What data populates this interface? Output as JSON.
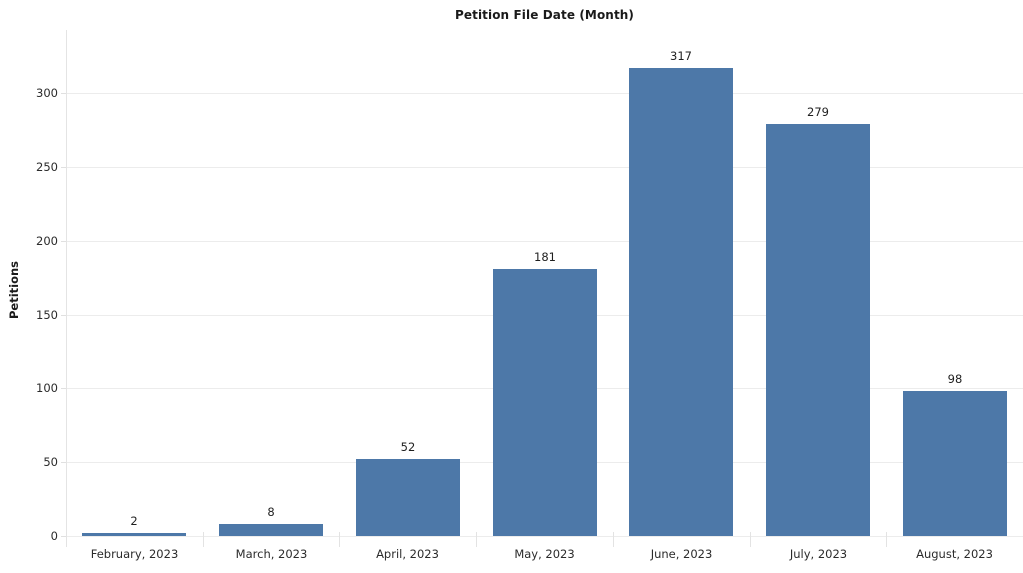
{
  "chart_data": {
    "type": "bar",
    "title": "Petition File Date (Month)",
    "xlabel": "",
    "ylabel": "Petitions",
    "categories": [
      "February, 2023",
      "March, 2023",
      "April, 2023",
      "May, 2023",
      "June, 2023",
      "July, 2023",
      "August, 2023"
    ],
    "values": [
      2,
      8,
      52,
      181,
      317,
      279,
      98
    ],
    "yticks": [
      0,
      50,
      100,
      150,
      200,
      250,
      300
    ],
    "ylim": [
      0,
      343
    ],
    "grid": true,
    "legend": "none",
    "value_labels": true,
    "colors": {
      "bar": "#4d78a8",
      "gridline": "#ececec",
      "axis_line": "#e4e4e4",
      "tick_text": "#2b2b2b",
      "title_text": "#1a1a1a"
    }
  }
}
